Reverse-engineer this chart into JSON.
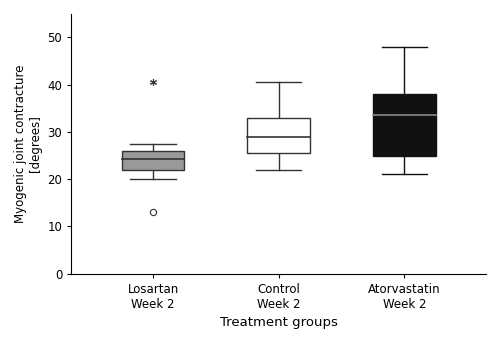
{
  "groups": [
    "Losartan\nWeek 2",
    "Control\nWeek 2",
    "Atorvastatin\nWeek 2"
  ],
  "box_stats": [
    {
      "med": 24.2,
      "q1": 22.0,
      "q3": 26.0,
      "whislo": 20.0,
      "whishi": 27.5,
      "fliers": [
        13.0
      ],
      "extreme_fliers": [
        40.5
      ],
      "color": "#999999",
      "edgecolor": "#333333",
      "median_color": "#333333"
    },
    {
      "med": 29.0,
      "q1": 25.5,
      "q3": 33.0,
      "whislo": 22.0,
      "whishi": 40.5,
      "fliers": [],
      "extreme_fliers": [],
      "color": "#ffffff",
      "edgecolor": "#333333",
      "median_color": "#333333"
    },
    {
      "med": 33.5,
      "q1": 25.0,
      "q3": 38.0,
      "whislo": 21.0,
      "whishi": 48.0,
      "fliers": [],
      "extreme_fliers": [],
      "color": "#111111",
      "edgecolor": "#111111",
      "median_color": "#888888"
    }
  ],
  "ylim": [
    0,
    55
  ],
  "yticks": [
    0,
    10,
    20,
    30,
    40,
    50
  ],
  "ylabel": "Myogenic joint contracture\n[degrees]",
  "xlabel": "Treatment groups",
  "box_width": 0.5,
  "linewidth": 1.0,
  "cap_size": 0.18,
  "background_color": "#ffffff",
  "figsize": [
    5.0,
    3.43
  ],
  "dpi": 100
}
